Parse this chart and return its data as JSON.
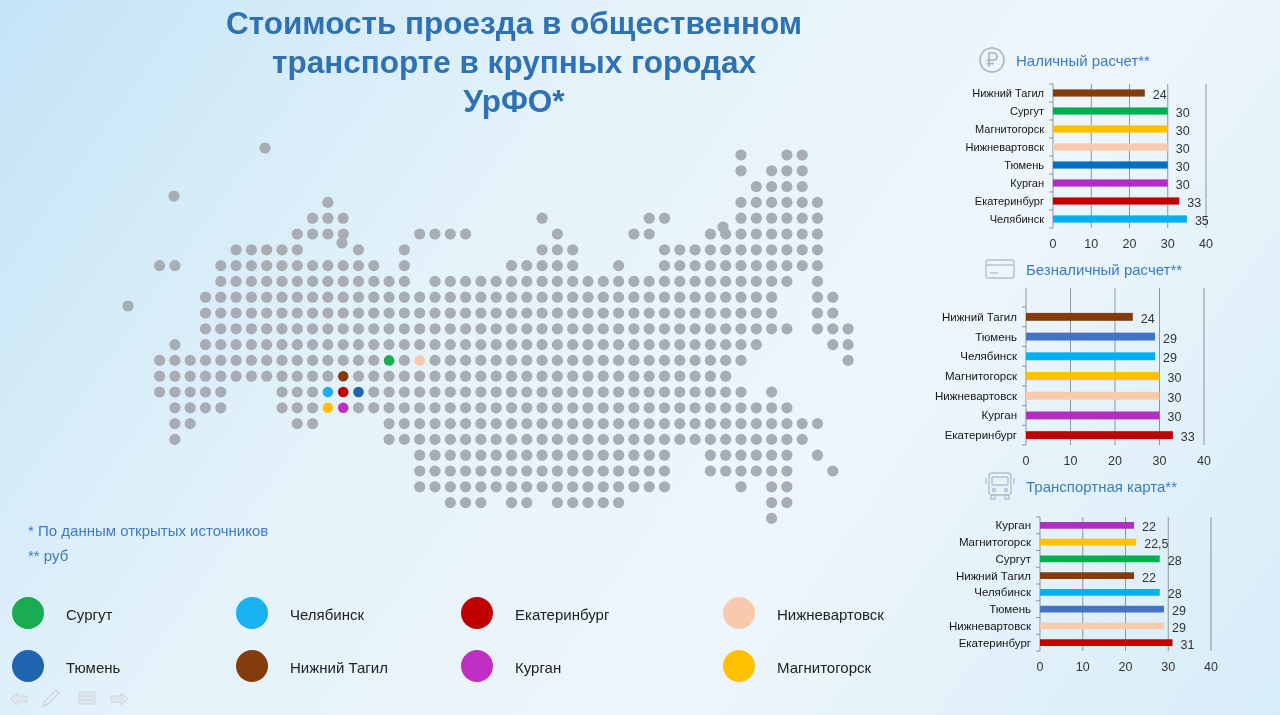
{
  "chart_data": [
    {
      "type": "other",
      "title": "Стоимость проезда в общественном\nтранспорте в крупных городах\nУрФО*",
      "categories": [
        "Сургут",
        "Челябинск",
        "Екатеринбург",
        "Нижневартовск",
        "Тюмень",
        "Нижний Тагил",
        "Курган",
        "Магнитогорск"
      ],
      "colors": [
        "#1aab53",
        "#19b2f0",
        "#c00000",
        "#f8c9ad",
        "#1e64ae",
        "#843c0c",
        "#c02ec2",
        "#ffc000"
      ],
      "annotations": [
        "* По данным открытых источников",
        "** руб"
      ]
    },
    {
      "type": "bar",
      "orientation": "horizontal",
      "title": "Наличный расчет**",
      "categories": [
        "Нижний Тагил",
        "Сургут",
        "Магнитогорск",
        "Нижневартовск",
        "Тюмень",
        "Курган",
        "Екатеринбург",
        "Челябинск"
      ],
      "values": [
        24,
        30,
        30,
        30,
        30,
        30,
        33,
        35
      ],
      "colors": [
        "#843c0c",
        "#00b050",
        "#ffc000",
        "#f8cbad",
        "#0070c0",
        "#b02fc0",
        "#c00000",
        "#00b0f0"
      ],
      "xlim": [
        0,
        40
      ],
      "xticks": [
        0,
        10,
        20,
        30,
        40
      ],
      "grid": "x",
      "data_labels": true
    },
    {
      "type": "bar",
      "orientation": "horizontal",
      "title": "Безналичный расчет**",
      "categories": [
        "Нижний Тагил",
        "Тюмень",
        "Челябинск",
        "Магнитогорск",
        "Нижневартовск",
        "Курган",
        "Екатеринбург"
      ],
      "values": [
        24,
        29,
        29,
        30,
        30,
        30,
        33
      ],
      "colors": [
        "#843c0c",
        "#4472c4",
        "#00b0f0",
        "#ffc000",
        "#f8cbad",
        "#b02fc0",
        "#c00000"
      ],
      "xlim": [
        0,
        40
      ],
      "xticks": [
        0,
        10,
        20,
        30,
        40
      ],
      "grid": "x",
      "data_labels": true
    },
    {
      "type": "bar",
      "orientation": "horizontal",
      "title": "Транспортная карта**",
      "categories": [
        "Курган",
        "Магнитогорск",
        "Сургут",
        "Нижний Тагил",
        "Челябинск",
        "Тюмень",
        "Нижневартовск",
        "Екатеринбург"
      ],
      "values": [
        22,
        22.5,
        28,
        22,
        28,
        29,
        29,
        31
      ],
      "value_labels": [
        "22",
        "22,5",
        "28",
        "22",
        "28",
        "29",
        "29",
        "31"
      ],
      "colors": [
        "#b02fc0",
        "#ffc000",
        "#00b050",
        "#843c0c",
        "#00b0f0",
        "#4472c4",
        "#f8cbad",
        "#c00000"
      ],
      "xlim": [
        0,
        40
      ],
      "xticks": [
        0,
        10,
        20,
        30,
        40
      ],
      "grid": "x"
    }
  ]
}
